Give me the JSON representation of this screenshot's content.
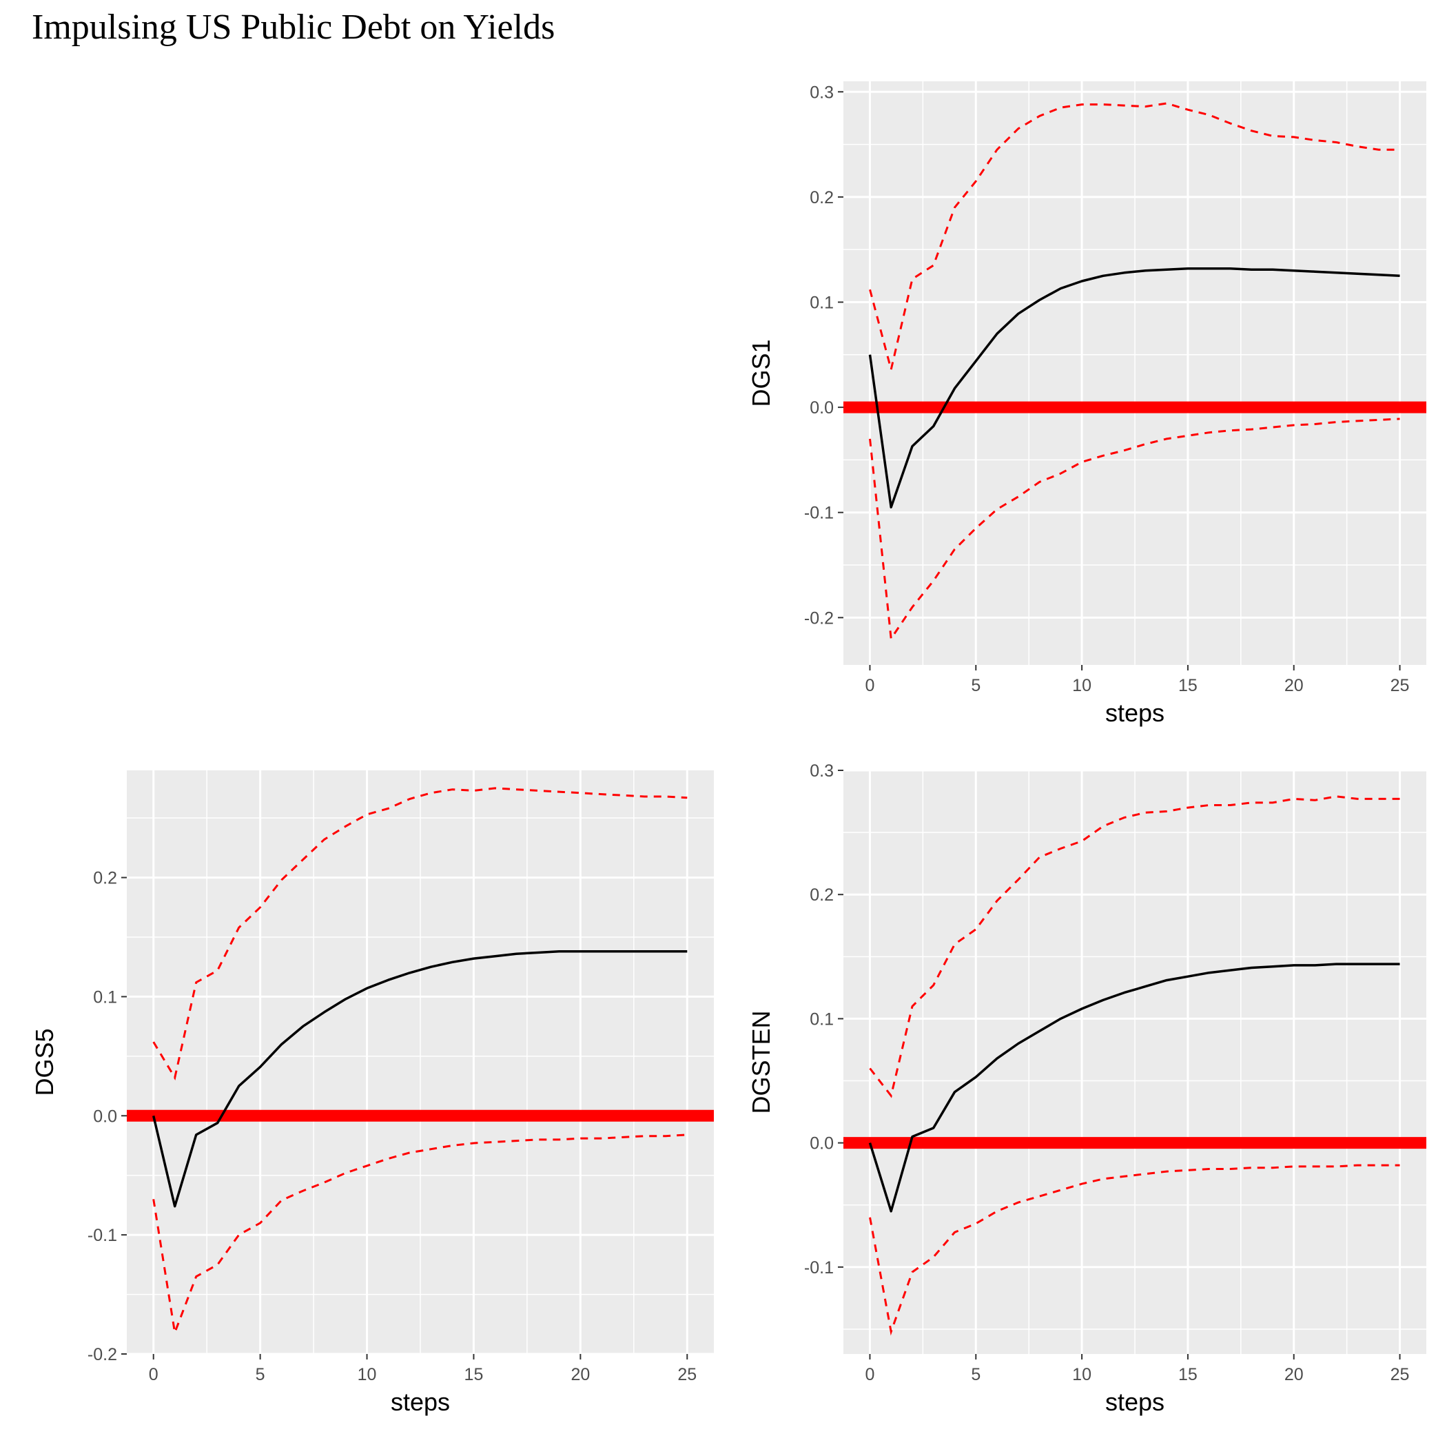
{
  "page": {
    "title": "Impulsing US Public Debt on Yields"
  },
  "chart_data": [
    {
      "id": "dgs1",
      "type": "line",
      "xlabel": "steps",
      "ylabel": "DGS1",
      "xlim": [
        -1.25,
        26.25
      ],
      "ylim": [
        -0.245,
        0.31
      ],
      "x_major_ticks": [
        0,
        5,
        10,
        15,
        20,
        25
      ],
      "y_major_ticks": [
        -0.2,
        -0.1,
        0.0,
        0.1,
        0.2,
        0.3
      ],
      "y_tick_labels": [
        "-0.2",
        "-0.1",
        "0.0",
        "0.1",
        "0.2",
        "0.3"
      ],
      "grid": true,
      "zero_line": {
        "y": 0,
        "color": "#ff0000"
      },
      "colors": {
        "irf": "#000000",
        "bands": "#ff0000"
      },
      "x": [
        0,
        1,
        2,
        3,
        4,
        5,
        6,
        7,
        8,
        9,
        10,
        11,
        12,
        13,
        14,
        15,
        16,
        17,
        18,
        19,
        20,
        21,
        22,
        23,
        24,
        25
      ],
      "series": [
        {
          "role": "irf",
          "style": "solid",
          "values": [
            0.05,
            -0.095,
            -0.037,
            -0.018,
            0.018,
            0.044,
            0.07,
            0.089,
            0.102,
            0.113,
            0.12,
            0.125,
            0.128,
            0.13,
            0.131,
            0.132,
            0.132,
            0.132,
            0.131,
            0.131,
            0.13,
            0.129,
            0.128,
            0.127,
            0.126,
            0.125
          ]
        },
        {
          "role": "upper",
          "style": "dashed",
          "values": [
            0.112,
            0.036,
            0.122,
            0.135,
            0.19,
            0.215,
            0.245,
            0.265,
            0.277,
            0.285,
            0.288,
            0.288,
            0.287,
            0.286,
            0.289,
            0.283,
            0.278,
            0.27,
            0.263,
            0.258,
            0.257,
            0.254,
            0.252,
            0.248,
            0.245,
            0.245
          ]
        },
        {
          "role": "lower",
          "style": "dashed",
          "values": [
            -0.03,
            -0.22,
            -0.19,
            -0.165,
            -0.135,
            -0.115,
            -0.097,
            -0.085,
            -0.071,
            -0.063,
            -0.052,
            -0.046,
            -0.041,
            -0.035,
            -0.03,
            -0.027,
            -0.024,
            -0.022,
            -0.021,
            -0.019,
            -0.017,
            -0.016,
            -0.014,
            -0.013,
            -0.012,
            -0.011
          ]
        }
      ]
    },
    {
      "id": "dgs5",
      "type": "line",
      "xlabel": "steps",
      "ylabel": "DGS5",
      "xlim": [
        -1.25,
        26.25
      ],
      "ylim": [
        -0.2,
        0.29
      ],
      "x_major_ticks": [
        0,
        5,
        10,
        15,
        20,
        25
      ],
      "y_major_ticks": [
        -0.2,
        -0.1,
        0.0,
        0.1,
        0.2
      ],
      "y_tick_labels": [
        "-0.2",
        "-0.1",
        "0.0",
        "0.1",
        "0.2"
      ],
      "grid": true,
      "zero_line": {
        "y": 0,
        "color": "#ff0000"
      },
      "colors": {
        "irf": "#000000",
        "bands": "#ff0000"
      },
      "x": [
        0,
        1,
        2,
        3,
        4,
        5,
        6,
        7,
        8,
        9,
        10,
        11,
        12,
        13,
        14,
        15,
        16,
        17,
        18,
        19,
        20,
        21,
        22,
        23,
        24,
        25
      ],
      "series": [
        {
          "role": "irf",
          "style": "solid",
          "values": [
            0.0,
            -0.076,
            -0.016,
            -0.006,
            0.025,
            0.041,
            0.06,
            0.075,
            0.087,
            0.098,
            0.107,
            0.114,
            0.12,
            0.125,
            0.129,
            0.132,
            0.134,
            0.136,
            0.137,
            0.138,
            0.138,
            0.138,
            0.138,
            0.138,
            0.138,
            0.138
          ]
        },
        {
          "role": "upper",
          "style": "dashed",
          "values": [
            0.062,
            0.032,
            0.112,
            0.122,
            0.158,
            0.175,
            0.198,
            0.215,
            0.232,
            0.243,
            0.253,
            0.258,
            0.266,
            0.271,
            0.274,
            0.273,
            0.275,
            0.274,
            0.273,
            0.272,
            0.271,
            0.27,
            0.269,
            0.268,
            0.268,
            0.267
          ]
        },
        {
          "role": "lower",
          "style": "dashed",
          "values": [
            -0.07,
            -0.182,
            -0.135,
            -0.125,
            -0.1,
            -0.09,
            -0.071,
            -0.063,
            -0.056,
            -0.048,
            -0.042,
            -0.036,
            -0.031,
            -0.028,
            -0.025,
            -0.023,
            -0.022,
            -0.021,
            -0.02,
            -0.02,
            -0.019,
            -0.019,
            -0.018,
            -0.017,
            -0.017,
            -0.016
          ]
        }
      ]
    },
    {
      "id": "dgsten",
      "type": "line",
      "xlabel": "steps",
      "ylabel": "DGSTEN",
      "xlim": [
        -1.25,
        26.25
      ],
      "ylim": [
        -0.17,
        0.3
      ],
      "x_major_ticks": [
        0,
        5,
        10,
        15,
        20,
        25
      ],
      "y_major_ticks": [
        -0.1,
        0.0,
        0.1,
        0.2,
        0.3
      ],
      "y_tick_labels": [
        "-0.1",
        "0.0",
        "0.1",
        "0.2",
        "0.3"
      ],
      "grid": true,
      "zero_line": {
        "y": 0,
        "color": "#ff0000"
      },
      "colors": {
        "irf": "#000000",
        "bands": "#ff0000"
      },
      "x": [
        0,
        1,
        2,
        3,
        4,
        5,
        6,
        7,
        8,
        9,
        10,
        11,
        12,
        13,
        14,
        15,
        16,
        17,
        18,
        19,
        20,
        21,
        22,
        23,
        24,
        25
      ],
      "series": [
        {
          "role": "irf",
          "style": "solid",
          "values": [
            0.0,
            -0.055,
            0.005,
            0.012,
            0.041,
            0.053,
            0.068,
            0.08,
            0.09,
            0.1,
            0.108,
            0.115,
            0.121,
            0.126,
            0.131,
            0.134,
            0.137,
            0.139,
            0.141,
            0.142,
            0.143,
            0.143,
            0.144,
            0.144,
            0.144,
            0.144
          ]
        },
        {
          "role": "upper",
          "style": "dashed",
          "values": [
            0.06,
            0.038,
            0.11,
            0.127,
            0.16,
            0.172,
            0.195,
            0.212,
            0.23,
            0.237,
            0.243,
            0.255,
            0.262,
            0.266,
            0.267,
            0.27,
            0.272,
            0.272,
            0.274,
            0.274,
            0.277,
            0.276,
            0.279,
            0.277,
            0.277,
            0.277
          ]
        },
        {
          "role": "lower",
          "style": "dashed",
          "values": [
            -0.06,
            -0.152,
            -0.104,
            -0.092,
            -0.072,
            -0.065,
            -0.055,
            -0.048,
            -0.043,
            -0.038,
            -0.033,
            -0.029,
            -0.027,
            -0.025,
            -0.023,
            -0.022,
            -0.021,
            -0.021,
            -0.02,
            -0.02,
            -0.019,
            -0.019,
            -0.019,
            -0.018,
            -0.018,
            -0.018
          ]
        }
      ]
    }
  ]
}
